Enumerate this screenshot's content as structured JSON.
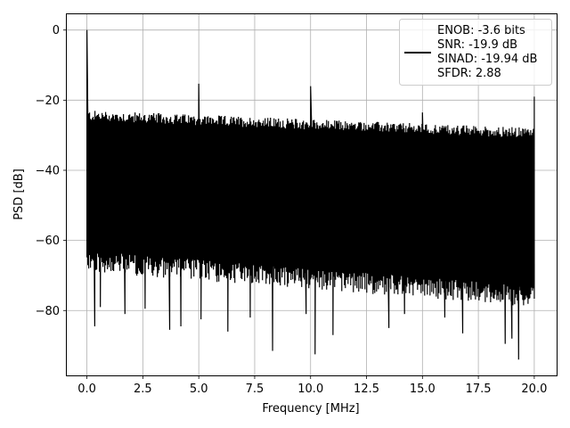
{
  "chart_data": {
    "type": "line",
    "title": "",
    "xlabel": "Frequency [MHz]",
    "ylabel": "PSD [dB]",
    "xlim": [
      -0.9,
      21.0
    ],
    "ylim": [
      -98.5,
      4.5
    ],
    "xticks": [
      0.0,
      2.5,
      5.0,
      7.5,
      10.0,
      12.5,
      15.0,
      17.5,
      20.0
    ],
    "xtick_labels": [
      "0.0",
      "2.5",
      "5.0",
      "7.5",
      "10.0",
      "12.5",
      "15.0",
      "17.5",
      "20.0"
    ],
    "yticks": [
      0,
      -20,
      -40,
      -60,
      -80
    ],
    "ytick_labels": [
      "0",
      "−20",
      "−40",
      "−60",
      "−80"
    ],
    "grid": true,
    "legend_position": "top-right",
    "series": [
      {
        "name": "",
        "color": "#000000",
        "noise_floor_db": {
          "upper": [
            -25,
            -30
          ],
          "lower": [
            -63,
            -73
          ]
        },
        "peaks": [
          {
            "x": 0.0,
            "y": 0.0
          },
          {
            "x": 5.0,
            "y": -15.3
          },
          {
            "x": 10.0,
            "y": -16.0
          },
          {
            "x": 15.0,
            "y": -23.5
          },
          {
            "x": 20.0,
            "y": -19.0
          }
        ],
        "deep_dips": [
          {
            "x": 0.35,
            "y": -84.5
          },
          {
            "x": 0.6,
            "y": -79.0
          },
          {
            "x": 1.7,
            "y": -81.0
          },
          {
            "x": 2.6,
            "y": -79.5
          },
          {
            "x": 3.7,
            "y": -85.5
          },
          {
            "x": 4.2,
            "y": -84.5
          },
          {
            "x": 5.1,
            "y": -82.5
          },
          {
            "x": 6.3,
            "y": -86.0
          },
          {
            "x": 7.3,
            "y": -82.0
          },
          {
            "x": 8.3,
            "y": -91.5
          },
          {
            "x": 9.8,
            "y": -81.0
          },
          {
            "x": 10.2,
            "y": -92.5
          },
          {
            "x": 11.0,
            "y": -87.0
          },
          {
            "x": 13.5,
            "y": -85.0
          },
          {
            "x": 14.2,
            "y": -81.0
          },
          {
            "x": 16.0,
            "y": -82.0
          },
          {
            "x": 16.8,
            "y": -86.5
          },
          {
            "x": 18.7,
            "y": -89.5
          },
          {
            "x": 19.0,
            "y": -88.0
          },
          {
            "x": 19.3,
            "y": -94.0
          }
        ]
      }
    ],
    "legend": {
      "entries": [
        "ENOB: -3.6 bits",
        "SNR: -19.9 dB",
        "SINAD: -19.94 dB",
        "SFDR: 2.88"
      ]
    }
  }
}
